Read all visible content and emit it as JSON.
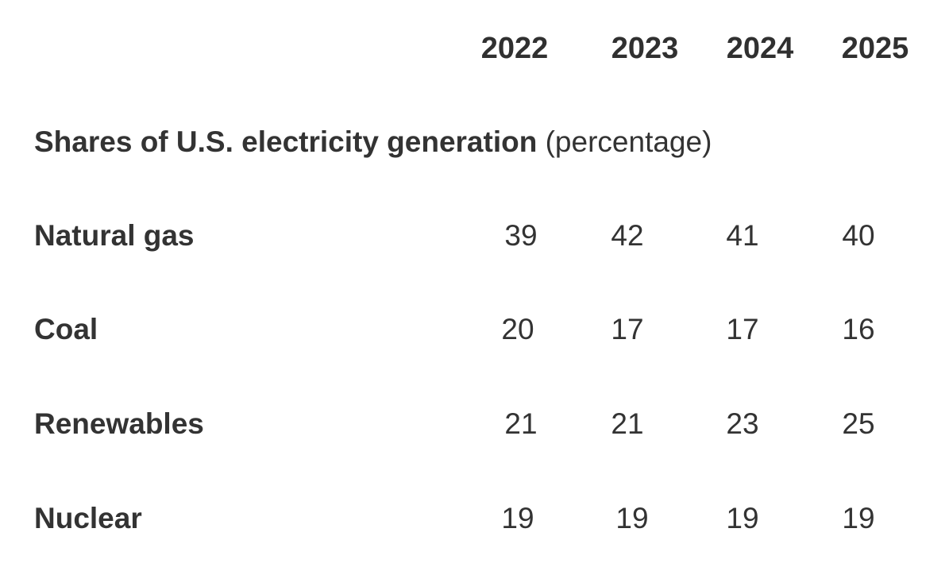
{
  "chart_data": {
    "type": "table",
    "title": "Shares of U.S. electricity generation",
    "title_unit": "(percentage)",
    "columns": [
      "2022",
      "2023",
      "2024",
      "2025"
    ],
    "rows": [
      {
        "label": "Natural gas",
        "values": [
          "39",
          "42",
          "41",
          "40"
        ]
      },
      {
        "label": "Coal",
        "values": [
          "20",
          "17",
          "17",
          "16"
        ]
      },
      {
        "label": "Renewables",
        "values": [
          "21",
          "21",
          "23",
          "25"
        ]
      },
      {
        "label": "Nuclear",
        "values": [
          "19",
          "19",
          "19",
          "19"
        ]
      }
    ]
  }
}
